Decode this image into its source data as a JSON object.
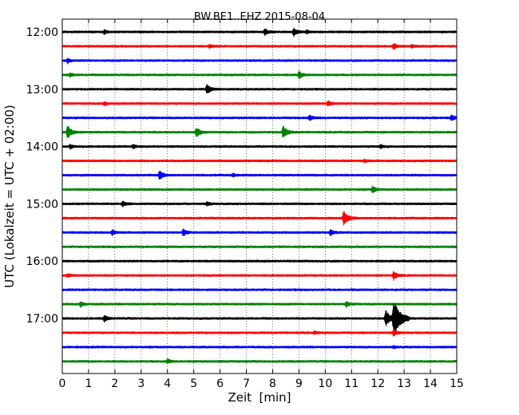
{
  "chart_data": {
    "type": "line",
    "subtype": "seismogram-dayplot",
    "title": "BW.BE1..EHZ 2015-08-04",
    "xlabel": "Zeit  [min]",
    "ylabel": "UTC (Lokalzeit = UTC + 02:00)",
    "xlim": [
      0,
      15
    ],
    "x_ticks": [
      0,
      1,
      2,
      3,
      4,
      5,
      6,
      7,
      8,
      9,
      10,
      11,
      12,
      13,
      14,
      15
    ],
    "x_tick_labels": [
      "0",
      "1",
      "2",
      "3",
      "4",
      "5",
      "6",
      "7",
      "8",
      "9",
      "10",
      "11",
      "12",
      "13",
      "14",
      "15"
    ],
    "y_tick_labels": [
      "12:00",
      "13:00",
      "14:00",
      "15:00",
      "16:00",
      "17:00"
    ],
    "grid": "x-dotted",
    "row_colors": [
      "#000000",
      "#ff0000",
      "#0000ff",
      "#008000"
    ],
    "rows": [
      {
        "start": "12:00",
        "events": [
          {
            "t": 1.6,
            "amp": 0.35
          },
          {
            "t": 7.7,
            "amp": 0.6
          },
          {
            "t": 8.8,
            "amp": 0.7
          },
          {
            "t": 9.3,
            "amp": 0.25
          }
        ]
      },
      {
        "start": "12:15",
        "events": [
          {
            "t": 5.6,
            "amp": 0.3
          },
          {
            "t": 12.6,
            "amp": 0.55
          },
          {
            "t": 13.3,
            "amp": 0.3
          }
        ]
      },
      {
        "start": "12:30",
        "events": [
          {
            "t": 0.2,
            "amp": 0.4
          }
        ]
      },
      {
        "start": "12:45",
        "events": [
          {
            "t": 0.3,
            "amp": 0.3
          },
          {
            "t": 9.0,
            "amp": 0.65
          }
        ]
      },
      {
        "start": "13:00",
        "events": [
          {
            "t": 5.5,
            "amp": 0.9
          }
        ]
      },
      {
        "start": "13:15",
        "events": [
          {
            "t": 1.6,
            "amp": 0.3
          },
          {
            "t": 10.1,
            "amp": 0.5
          }
        ]
      },
      {
        "start": "13:30",
        "events": [
          {
            "t": 9.4,
            "amp": 0.5
          },
          {
            "t": 14.8,
            "amp": 0.5
          }
        ]
      },
      {
        "start": "13:45",
        "events": [
          {
            "t": 0.2,
            "amp": 1.2
          },
          {
            "t": 5.1,
            "amp": 0.85
          },
          {
            "t": 8.4,
            "amp": 1.1
          }
        ]
      },
      {
        "start": "14:00",
        "events": [
          {
            "t": 0.3,
            "amp": 0.35
          },
          {
            "t": 2.7,
            "amp": 0.35
          },
          {
            "t": 12.1,
            "amp": 0.3
          }
        ]
      },
      {
        "start": "14:15",
        "events": [
          {
            "t": 11.5,
            "amp": 0.25
          }
        ]
      },
      {
        "start": "14:30",
        "events": [
          {
            "t": 3.7,
            "amp": 0.8
          },
          {
            "t": 6.5,
            "amp": 0.25
          }
        ]
      },
      {
        "start": "14:45",
        "events": [
          {
            "t": 11.8,
            "amp": 0.6
          }
        ]
      },
      {
        "start": "15:00",
        "events": [
          {
            "t": 2.3,
            "amp": 0.45
          },
          {
            "t": 5.5,
            "amp": 0.35
          }
        ]
      },
      {
        "start": "15:15",
        "events": [
          {
            "t": 10.7,
            "amp": 1.3
          }
        ]
      },
      {
        "start": "15:30",
        "events": [
          {
            "t": 1.9,
            "amp": 0.45
          },
          {
            "t": 4.6,
            "amp": 0.6
          },
          {
            "t": 10.2,
            "amp": 0.5
          }
        ]
      },
      {
        "start": "15:45",
        "events": []
      },
      {
        "start": "16:00",
        "events": []
      },
      {
        "start": "16:15",
        "events": [
          {
            "t": 0.2,
            "amp": 0.3
          },
          {
            "t": 12.6,
            "amp": 0.75
          }
        ]
      },
      {
        "start": "16:30",
        "events": []
      },
      {
        "start": "16:45",
        "events": [
          {
            "t": 0.7,
            "amp": 0.45
          },
          {
            "t": 10.8,
            "amp": 0.5
          }
        ]
      },
      {
        "start": "17:00",
        "events": [
          {
            "t": 1.6,
            "amp": 0.55
          },
          {
            "t": 12.3,
            "amp": 1.5
          },
          {
            "t": 12.6,
            "amp": 3.2
          }
        ]
      },
      {
        "start": "17:15",
        "events": [
          {
            "t": 9.6,
            "amp": 0.25
          },
          {
            "t": 12.6,
            "amp": 0.6
          }
        ]
      },
      {
        "start": "17:30",
        "events": [
          {
            "t": 12.6,
            "amp": 0.2
          }
        ]
      },
      {
        "start": "17:45",
        "events": [
          {
            "t": 4.0,
            "amp": 0.4
          }
        ]
      }
    ]
  }
}
